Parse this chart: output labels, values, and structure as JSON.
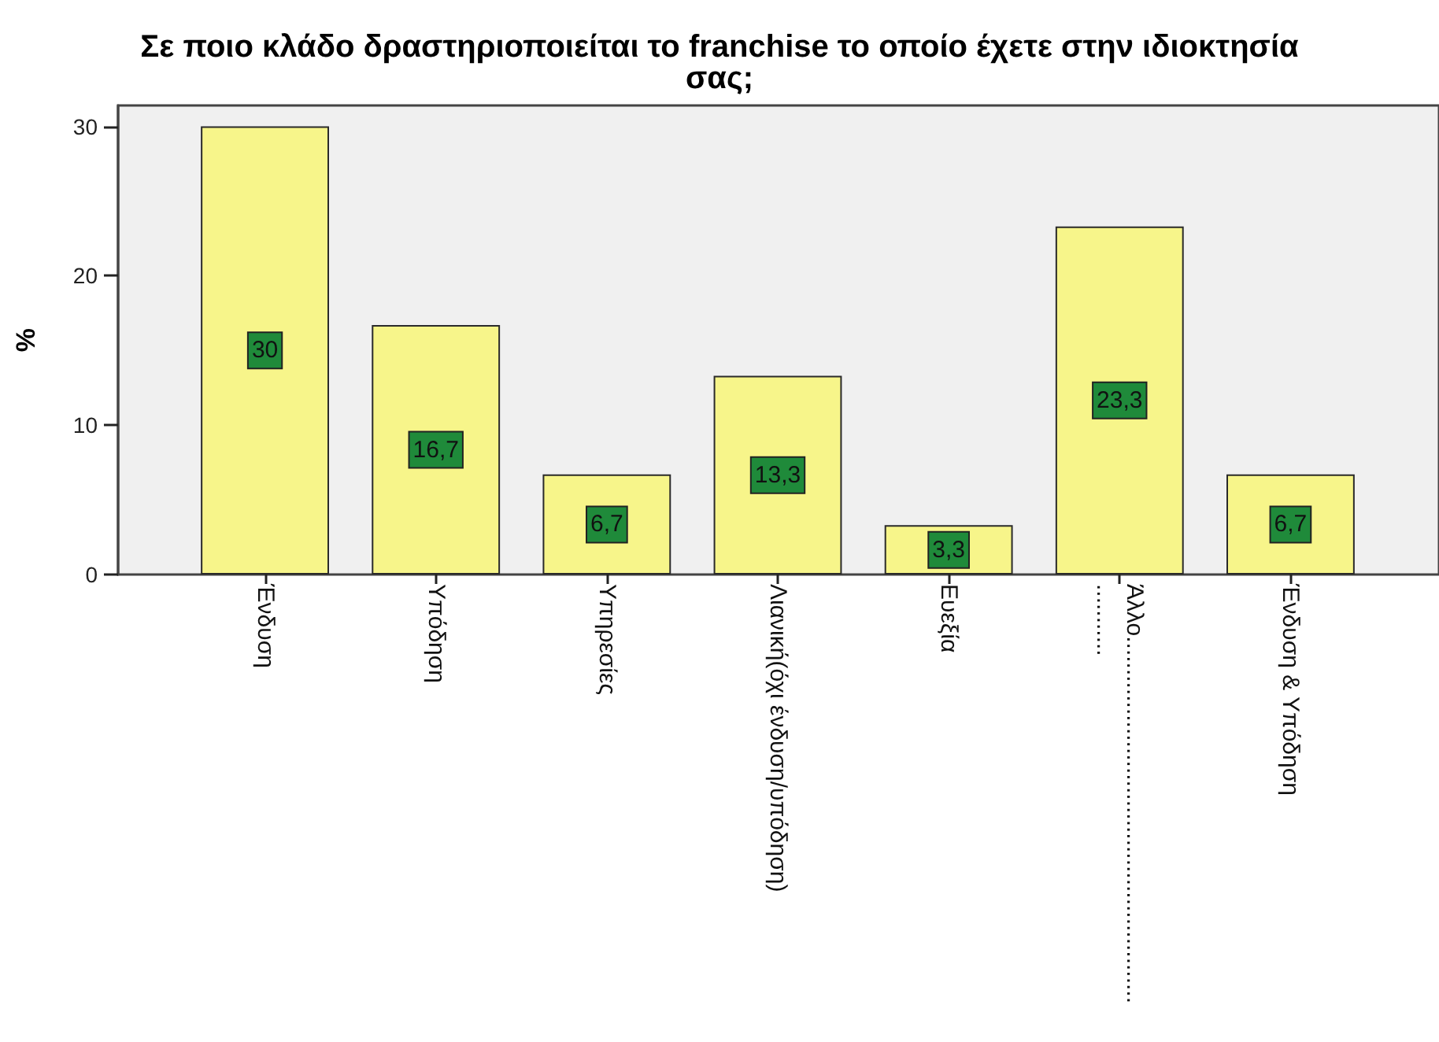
{
  "chart_data": {
    "type": "bar",
    "title": "Σε ποιο κλάδο δραστηριοποιείται το franchise το οποίο έχετε στην ιδιοκτησία σας;",
    "ylabel": "%",
    "categories": [
      "Ένδυση",
      "Υπόδηση",
      "Υπηρεσίες",
      "Λιανική(όχι ένδυση/υπόδηση)",
      "Ευεξία",
      "Άλλο........................................................\n...........",
      "Ένδυση & Υπόδηση"
    ],
    "values": [
      30,
      16.7,
      6.7,
      13.3,
      3.3,
      23.3,
      6.7
    ],
    "value_labels": [
      "30",
      "16,7",
      "6,7",
      "13,3",
      "3,3",
      "23,3",
      "6,7"
    ],
    "color": "#f7f58a",
    "ylim": [
      0,
      31.4
    ],
    "yticks": [
      0,
      10,
      20,
      30
    ]
  }
}
